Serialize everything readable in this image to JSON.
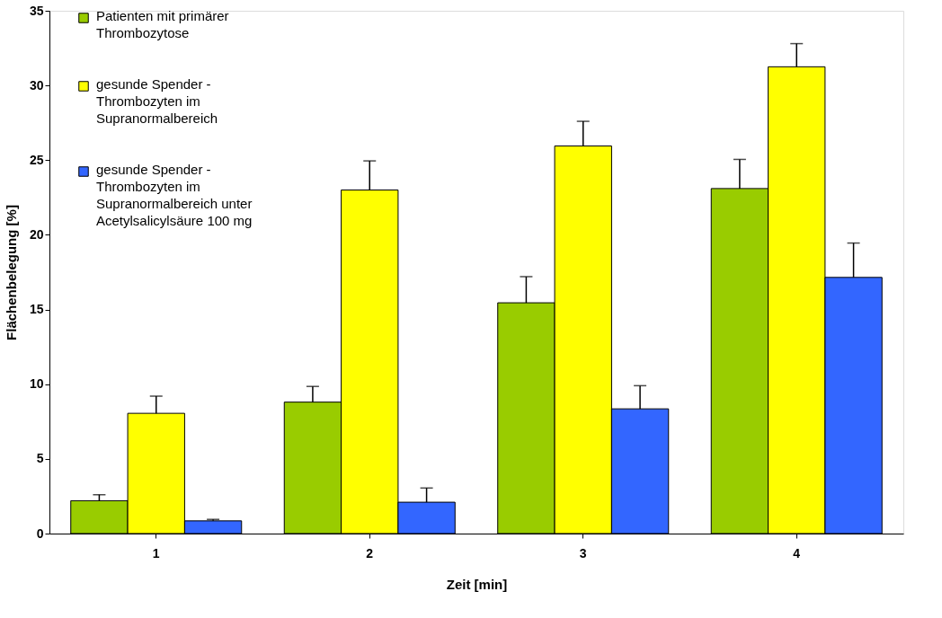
{
  "chart_data": {
    "type": "bar",
    "xlabel": "Zeit [min]",
    "ylabel": "Flächenbelegung [%]",
    "categories": [
      "1",
      "2",
      "3",
      "4"
    ],
    "series": [
      {
        "name": "Patienten mit primärer Thrombozytose",
        "color": "#99cc00",
        "values": [
          2.2,
          8.8,
          15.45,
          23.1
        ],
        "errors": [
          [
            2.2,
            2.6
          ],
          [
            8.8,
            9.85
          ],
          [
            15.45,
            17.2
          ],
          [
            23.1,
            25.05
          ]
        ]
      },
      {
        "name": "gesunde Spender - Thrombozyten im Supranormalbereich",
        "color": "#ffff00",
        "values": [
          8.05,
          23.0,
          25.95,
          31.25
        ],
        "errors": [
          [
            8.05,
            9.2
          ],
          [
            23.0,
            24.95
          ],
          [
            25.95,
            27.6
          ],
          [
            31.25,
            32.8
          ]
        ]
      },
      {
        "name": "gesunde Spender - Thrombozyten im Supranormalbereich unter Acetylsalicylsäure 100 mg",
        "color": "#3366ff",
        "values": [
          0.85,
          2.1,
          8.35,
          17.15
        ],
        "errors": [
          [
            0.85,
            0.95
          ],
          [
            2.1,
            3.05
          ],
          [
            8.35,
            9.9
          ],
          [
            17.15,
            19.45
          ]
        ]
      }
    ],
    "ylim": [
      0,
      35
    ],
    "yticks": [
      0,
      5,
      10,
      15,
      20,
      25,
      30,
      35
    ],
    "grid": false,
    "legend": "top left"
  }
}
